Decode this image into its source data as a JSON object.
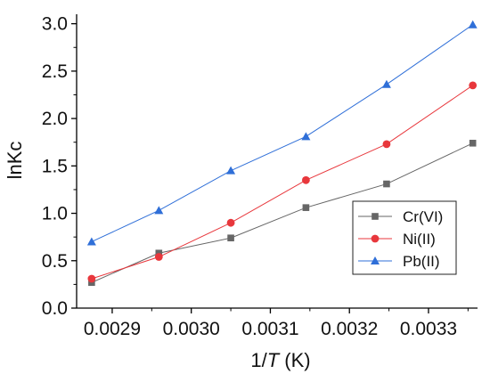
{
  "chart_data": {
    "type": "line",
    "xlabel_prefix": "1/",
    "xlabel_var": "T",
    "xlabel_suffix": " (K)",
    "ylabel": "lnKc",
    "xlim": [
      0.002855,
      0.003362
    ],
    "ylim": [
      0.0,
      3.1
    ],
    "x_ticks": [
      0.0029,
      0.003,
      0.0031,
      0.0032,
      0.0033
    ],
    "x_tick_labels": [
      "0.0029",
      "0.0030",
      "0.0031",
      "0.0032",
      "0.0033"
    ],
    "y_ticks": [
      0.0,
      0.5,
      1.0,
      1.5,
      2.0,
      2.5,
      3.0
    ],
    "y_tick_labels": [
      "0.0",
      "0.5",
      "1.0",
      "1.5",
      "2.0",
      "2.5",
      "3.0"
    ],
    "grid": false,
    "legend_position": "lower-right",
    "x": [
      0.002874,
      0.002959,
      0.00305,
      0.003145,
      0.003247,
      0.003356
    ],
    "series": [
      {
        "name": "Cr(VI)",
        "values": [
          0.27,
          0.58,
          0.74,
          1.06,
          1.31,
          1.74
        ],
        "color": "#666666",
        "marker": "square"
      },
      {
        "name": "Ni(II)",
        "values": [
          0.31,
          0.54,
          0.9,
          1.35,
          1.73,
          2.35
        ],
        "color": "#e8373c",
        "marker": "circle"
      },
      {
        "name": "Pb(II)",
        "values": [
          0.7,
          1.03,
          1.45,
          1.81,
          2.36,
          2.99
        ],
        "color": "#2f6fd8",
        "marker": "triangle"
      }
    ]
  }
}
